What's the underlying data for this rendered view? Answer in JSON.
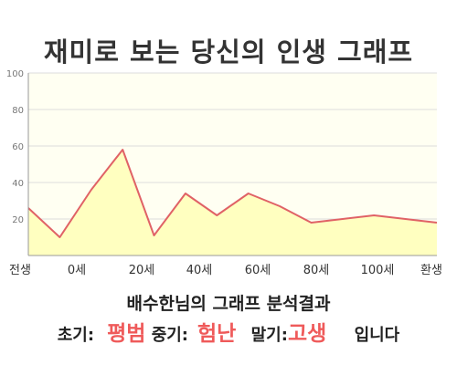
{
  "page": {
    "title": "재미로 보는 당신의 인생 그래프"
  },
  "chart_data": {
    "type": "area",
    "title": "",
    "xlabel": "",
    "ylabel": "",
    "x_tick_labels": [
      "전생",
      "0세",
      "20세",
      "40세",
      "60세",
      "80세",
      "100세",
      "환생"
    ],
    "y_ticks": [
      20,
      40,
      60,
      80,
      100
    ],
    "ylim": [
      0,
      100
    ],
    "grid": true,
    "legend": "none",
    "series": [
      {
        "values": [
          26,
          10,
          36,
          58,
          11,
          34,
          22,
          34,
          27,
          18,
          20,
          22,
          20,
          18
        ]
      }
    ],
    "colors": {
      "line": "#e06266",
      "fill": "#ffffc0",
      "plot_background": "#fffff2",
      "grid": "#dcdcdc",
      "axis": "#999999",
      "tick_text": "#777777"
    }
  },
  "result": {
    "title": "배수한님의 그래프 분석결과",
    "early_label": "초기:",
    "early_value": "평범",
    "middle_label": "중기:",
    "middle_value": "험난",
    "late_label": "말기:",
    "late_value": "고생",
    "suffix": "입니다"
  },
  "colors": {
    "highlight": "#ef5a5a",
    "text": "#222222"
  }
}
